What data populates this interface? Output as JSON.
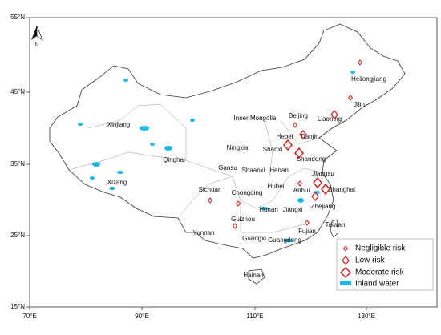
{
  "axes": {
    "latitude_labels": [
      "55°N",
      "45°N",
      "35°N",
      "25°N",
      "15°N"
    ],
    "longitude_labels": [
      "70°E",
      "90°E",
      "110°E",
      "130°E"
    ]
  },
  "north_arrow": "N",
  "regions": [
    "Heilongjiang",
    "Jilin",
    "Xinjiang",
    "Inner Mongolia",
    "Beijing",
    "Liaoning",
    "Hebei",
    "Tianjin",
    "Ningxia",
    "Shanxi",
    "Qinghai",
    "Shandong",
    "Gansu",
    "Shaanxi",
    "Henan",
    "Jiangsu",
    "Xizang",
    "Sichuan",
    "Hubei",
    "Anhui",
    "Shanghai",
    "Chongqing",
    "Zhejiang",
    "Hunan",
    "Jiangxi",
    "Guizhou",
    "Taiwan",
    "Yunnan",
    "Fujian",
    "Guangxi",
    "Guangdong",
    "Hainan"
  ],
  "legend": [
    "Negligible risk",
    "Low risk",
    "Moderate risk",
    "Inland water"
  ]
}
